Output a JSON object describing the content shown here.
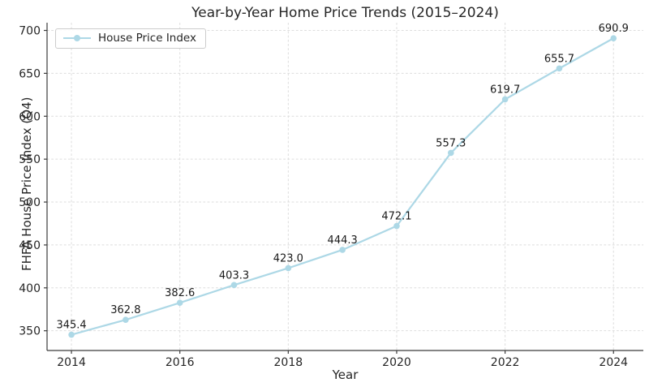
{
  "chart_data": {
    "type": "line",
    "title": "Year-by-Year Home Price Trends (2015–2024)",
    "xlabel": "Year",
    "ylabel": "FHFA House Price Index (Q4)",
    "legend": {
      "position": "upper-left",
      "entries": [
        "House Price Index"
      ]
    },
    "x": [
      2014,
      2015,
      2016,
      2017,
      2018,
      2019,
      2020,
      2021,
      2022,
      2023,
      2024
    ],
    "values": [
      345.4,
      362.8,
      382.6,
      403.3,
      423.0,
      444.3,
      472.1,
      557.3,
      619.7,
      655.7,
      690.9
    ],
    "point_labels": [
      "345.4",
      "362.8",
      "382.6",
      "403.3",
      "423.0",
      "444.3",
      "472.1",
      "557.3",
      "619.7",
      "655.7",
      "690.9"
    ],
    "xticks": [
      2014,
      2016,
      2018,
      2020,
      2022,
      2024
    ],
    "yticks": [
      350,
      400,
      450,
      500,
      550,
      600,
      650,
      700
    ],
    "xlim": [
      2013.55,
      2024.55
    ],
    "ylim": [
      327,
      709
    ],
    "grid": true,
    "grid_style": "dashed",
    "legend_visible": true,
    "colors": {
      "line": "#ADD8E6",
      "marker": "#ADD8E6",
      "grid": "#dddddd",
      "spine": "#3c3c3c",
      "tick_text": "#262626",
      "annotation_text": "#1a1a1a"
    }
  }
}
